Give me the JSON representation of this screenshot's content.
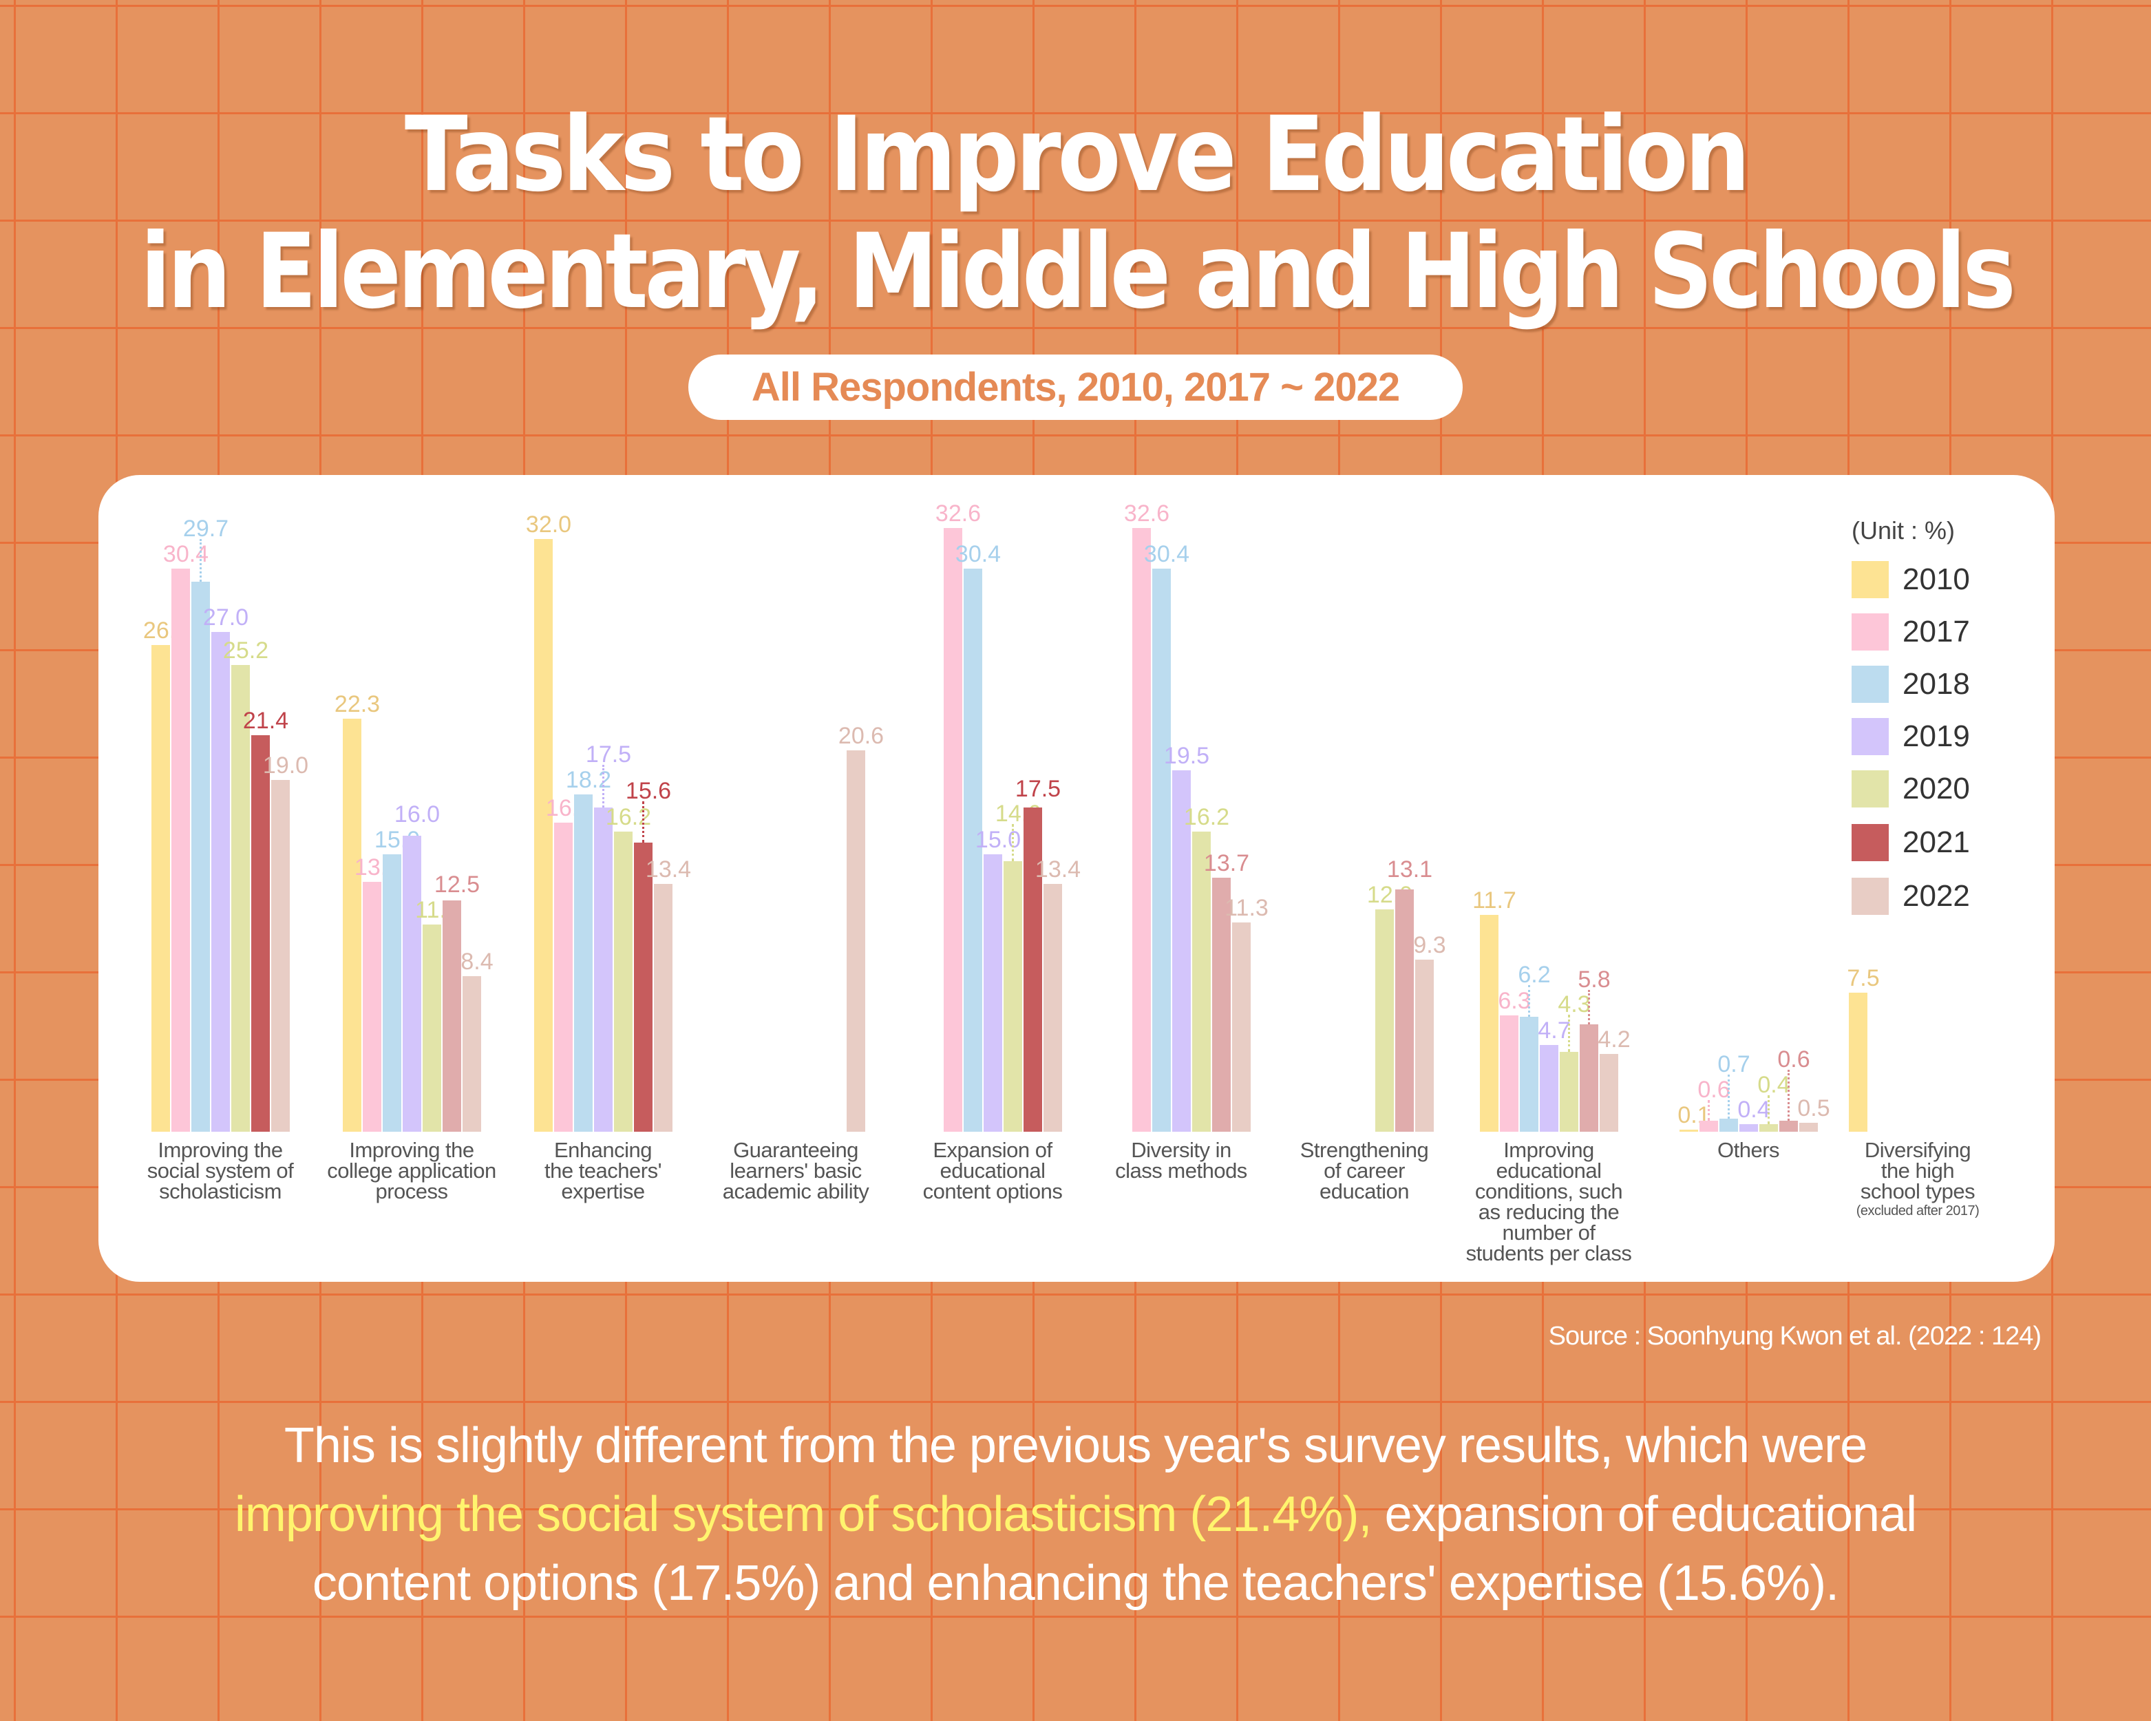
{
  "title": {
    "line1": "Tasks to Improve Education",
    "line2": "in Elementary, Middle and High Schools"
  },
  "subtitle": "All Respondents, 2010, 2017 ~ 2022",
  "chart_data": {
    "type": "bar",
    "unit_label": "(Unit : %)",
    "categories": [
      "Improving the\nsocial system of\nscholasticism",
      "Improving the\ncollege application\nprocess",
      "Enhancing\nthe teachers'\nexpertise",
      "Guaranteeing\nlearners' basic\nacademic ability",
      "Expansion of\neducational\ncontent options",
      "Diversity in\nclass methods",
      "Strengthening\nof career\neducation",
      "Improving\neducational\nconditions, such\nas reducing the\nnumber of\nstudents per class",
      "Others",
      "Diversifying\nthe high\nschool types"
    ],
    "category_notes": [
      "",
      "",
      "",
      "",
      "",
      "",
      "",
      "",
      "",
      "(excluded after 2017)"
    ],
    "series": [
      {
        "name": "2010",
        "color": "#fde393",
        "label_color": "#e9c77e",
        "values": [
          26.3,
          22.3,
          32.0,
          null,
          null,
          null,
          null,
          11.7,
          0.1,
          7.5
        ]
      },
      {
        "name": "2017",
        "color": "#fdc6d8",
        "label_color": "#f8b4ca",
        "values": [
          30.4,
          13.5,
          16.7,
          null,
          32.6,
          32.6,
          null,
          6.3,
          0.6,
          null
        ]
      },
      {
        "name": "2018",
        "color": "#bcdcef",
        "label_color": "#a6d0ec",
        "values": [
          29.7,
          15.0,
          18.2,
          null,
          30.4,
          30.4,
          null,
          6.2,
          0.7,
          null
        ]
      },
      {
        "name": "2019",
        "color": "#d3c5fb",
        "label_color": "#c1b0f7",
        "values": [
          27.0,
          16.0,
          17.5,
          null,
          15.0,
          19.5,
          null,
          4.7,
          0.4,
          null
        ]
      },
      {
        "name": "2020",
        "color": "#e2e4a9",
        "label_color": "#d6db8a",
        "values": [
          25.2,
          11.2,
          16.2,
          null,
          14.6,
          16.2,
          12.0,
          4.3,
          0.4,
          null
        ]
      },
      {
        "name": "2021",
        "color": "#c65c5d",
        "label_color": "#c0434a",
        "muted_color": "#e0acac",
        "muted_label_color": "#d98d90",
        "highlight": [
          true,
          false,
          true,
          false,
          true,
          false,
          false,
          false,
          false,
          false
        ],
        "values": [
          21.4,
          12.5,
          15.6,
          null,
          17.5,
          13.7,
          13.1,
          5.8,
          0.6,
          null
        ]
      },
      {
        "name": "2022",
        "color": "#e8cdc5",
        "label_color": "#dcbab0",
        "values": [
          19.0,
          8.4,
          13.4,
          20.6,
          13.4,
          11.3,
          9.3,
          4.2,
          0.5,
          null
        ]
      }
    ],
    "ylim": [
      0,
      35
    ],
    "grid": false,
    "legend_position": "top-right"
  },
  "source": "Source : Soonhyung Kwon et al. (2022 : 124)",
  "paragraph": {
    "part1": "This is slightly different from the previous year's survey results, which were",
    "highlight": "improving the social system of scholasticism (21.4%),",
    "part2": " expansion of educational",
    "part3": "content options (17.5%) and enhancing the teachers' expertise (15.6%)."
  }
}
